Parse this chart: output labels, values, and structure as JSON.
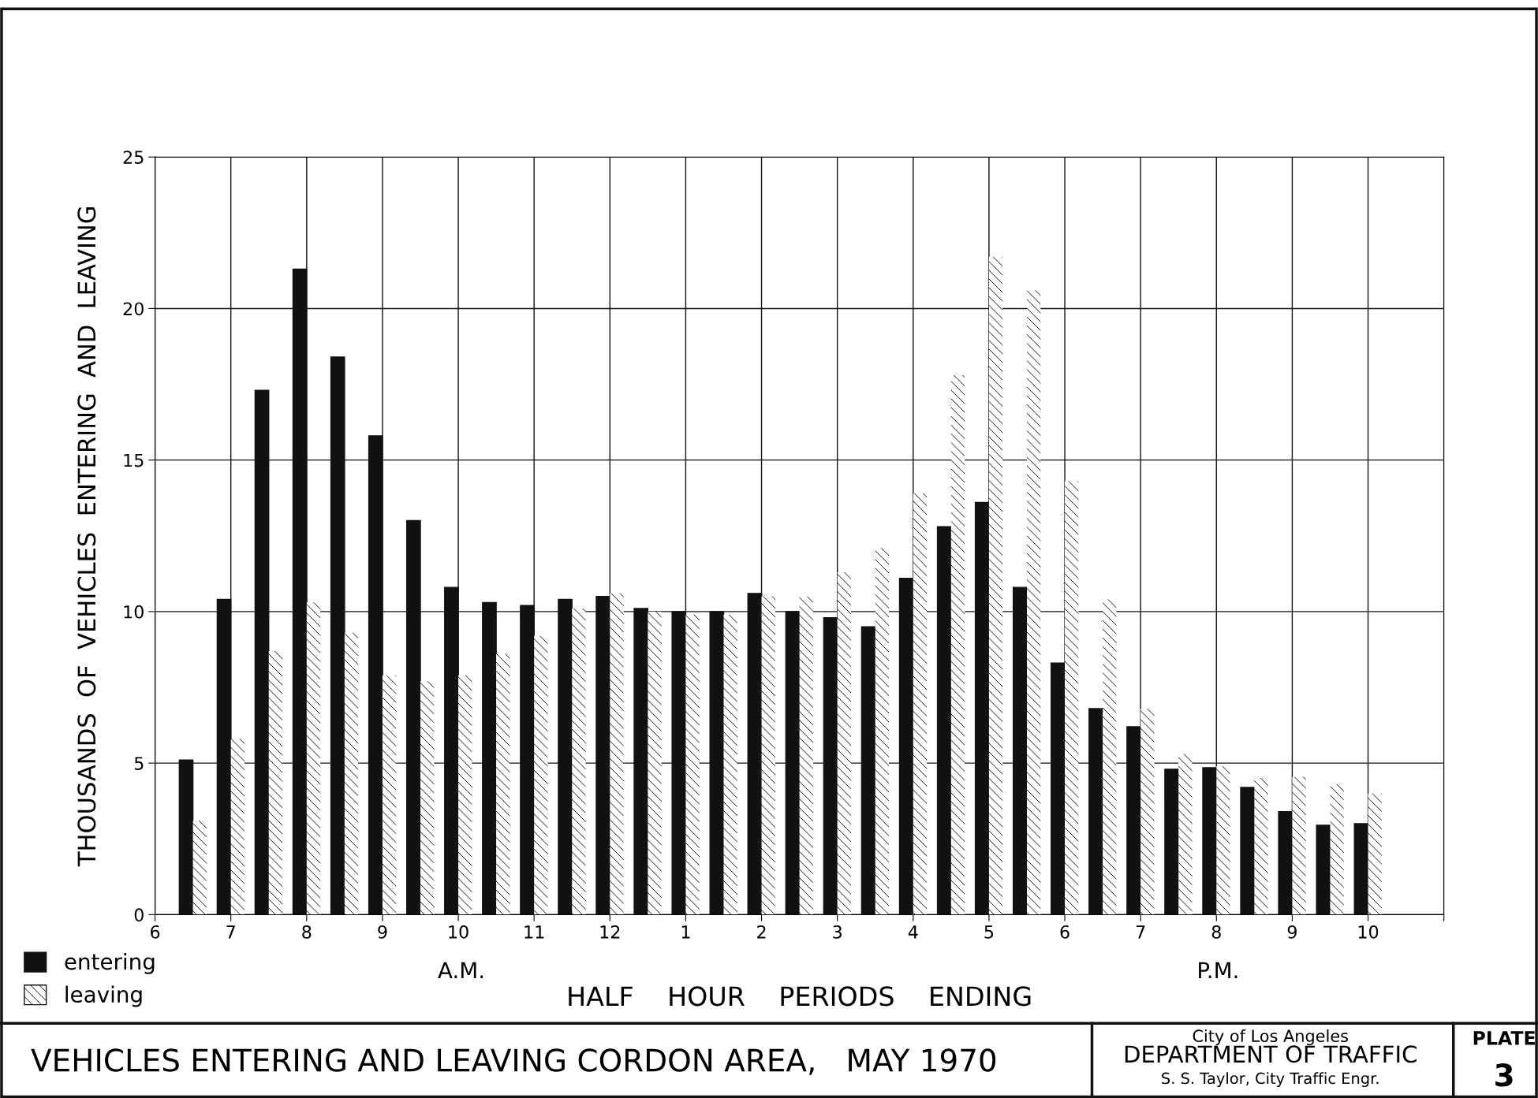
{
  "chart_data": {
    "type": "bar",
    "title": "VEHICLES ENTERING AND LEAVING CORDON AREA,   MAY 1970",
    "xlabel": "HALF    HOUR    PERIODS    ENDING",
    "ylabel": "THOUSANDS  OF  VEHICLES  ENTERING  AND  LEAVING",
    "categories": [
      "6",
      null,
      "7",
      null,
      "8",
      null,
      "9",
      null,
      "10",
      null,
      "11",
      null,
      "12",
      null,
      "1",
      null,
      "2",
      null,
      "3",
      null,
      "4",
      null,
      "5",
      null,
      "6",
      null,
      "7",
      null,
      "8",
      null,
      "9",
      null,
      "10",
      null,
      null
    ],
    "series": [
      {
        "name": "entering",
        "color": "#111111",
        "values": [
          null,
          5.1,
          10.4,
          17.3,
          21.3,
          18.4,
          15.8,
          13.0,
          10.8,
          10.3,
          10.2,
          10.4,
          10.5,
          10.1,
          10.0,
          10.0,
          10.6,
          10.0,
          9.8,
          9.5,
          11.1,
          12.8,
          13.6,
          10.8,
          8.3,
          6.8,
          6.2,
          4.8,
          4.85,
          4.2,
          3.4,
          2.95,
          3.0,
          null,
          null
        ]
      },
      {
        "name": "leaving",
        "color": "#ffffff",
        "values": [
          null,
          3.1,
          5.8,
          8.7,
          10.3,
          9.3,
          7.9,
          7.7,
          7.9,
          8.6,
          9.2,
          10.1,
          10.6,
          10.0,
          9.9,
          9.9,
          10.5,
          10.5,
          11.3,
          12.1,
          13.9,
          17.8,
          21.7,
          20.6,
          14.3,
          10.4,
          6.8,
          5.3,
          4.9,
          4.5,
          4.55,
          4.3,
          4.0,
          null,
          null
        ]
      }
    ],
    "ylim": [
      0,
      25
    ],
    "yticks": [
      0,
      5,
      10,
      15,
      20,
      25
    ],
    "grid": true,
    "legend": "bottom left",
    "annotations": [
      "A.M.",
      "P.M.",
      "City of Los Angeles",
      "DEPARTMENT OF TRAFFIC",
      "S. S. Taylor, City Traffic Engr.",
      "PLATE",
      "3"
    ]
  }
}
